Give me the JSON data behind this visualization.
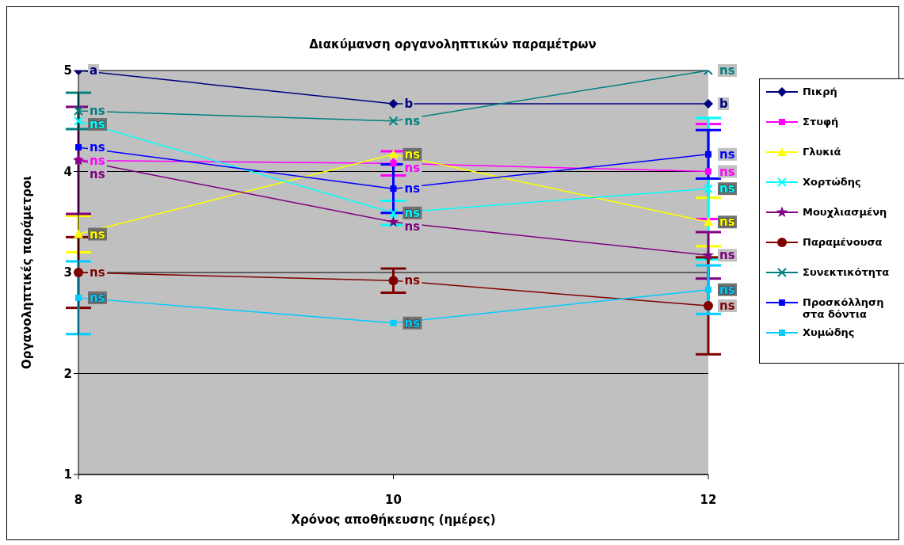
{
  "chart_data": {
    "type": "line",
    "title": "Διακύμανση οργανοληπτικών παραμέτρων",
    "xlabel": "Χρόνος αποθήκευσης (ημέρες)",
    "ylabel": "Οργανοληπτικές παράμετροι",
    "categories": [
      "8",
      "10",
      "12"
    ],
    "ylim": [
      1,
      5
    ],
    "yticks": [
      1,
      2,
      3,
      4,
      5
    ],
    "grid": "y",
    "legend": "right",
    "series": [
      {
        "name": "Πικρή",
        "color": "#000080",
        "marker": "diamond",
        "values": [
          5,
          4.67,
          4.67
        ],
        "value_labels": [
          "a",
          "b",
          "b"
        ]
      },
      {
        "name": "Στυφή",
        "color": "#ff00ff",
        "marker": "square",
        "values": [
          4.11,
          4.08,
          4.0
        ],
        "errors": [
          null,
          0.12,
          0.47
        ],
        "value_labels": [
          "ns",
          "ns",
          "ns"
        ]
      },
      {
        "name": "Γλυκιά",
        "color": "#ffff00",
        "marker": "triangle",
        "values": [
          3.38,
          4.17,
          3.5
        ],
        "errors": [
          0.18,
          null,
          0.24
        ],
        "value_labels": [
          "ns",
          "ns",
          "ns"
        ]
      },
      {
        "name": "Χορτώδης",
        "color": "#00ffff",
        "marker": "cross",
        "values": [
          4.5,
          3.59,
          3.83
        ],
        "errors": [
          null,
          0.12,
          0.7
        ],
        "value_labels": [
          "ns",
          "ns",
          "ns"
        ]
      },
      {
        "name": "Μουχλιασμένη",
        "color": "#800080",
        "marker": "star",
        "values": [
          4.11,
          3.5,
          3.17
        ],
        "errors": [
          0.53,
          null,
          0.23
        ],
        "value_labels": [
          "ns",
          "ns",
          "ns"
        ]
      },
      {
        "name": "Παραμένουσα",
        "color": "#800000",
        "marker": "circle",
        "values": [
          3.0,
          2.92,
          2.67
        ],
        "errors": [
          0.35,
          0.12,
          0.48
        ],
        "value_labels": [
          "ns",
          "ns",
          "ns"
        ]
      },
      {
        "name": "Συνεκτικότητα",
        "color": "#008080",
        "marker": "cross",
        "values": [
          4.6,
          4.5,
          5.0
        ],
        "errors": [
          0.18,
          null,
          null
        ],
        "value_labels": [
          "ns",
          "ns",
          "ns"
        ]
      },
      {
        "name": "Προσκόλληση στα δόντια",
        "color": "#0000ff",
        "marker": "square",
        "values": [
          4.24,
          3.83,
          4.17
        ],
        "errors": [
          null,
          0.24,
          0.24
        ],
        "value_labels": [
          "ns",
          "ns",
          "ns"
        ]
      },
      {
        "name": "Χυμώδης",
        "color": "#00ccff",
        "marker": "square",
        "values": [
          2.75,
          2.5,
          2.83
        ],
        "errors": [
          0.36,
          null,
          0.24
        ],
        "value_labels": [
          "ns",
          "ns",
          "ns"
        ]
      }
    ]
  }
}
